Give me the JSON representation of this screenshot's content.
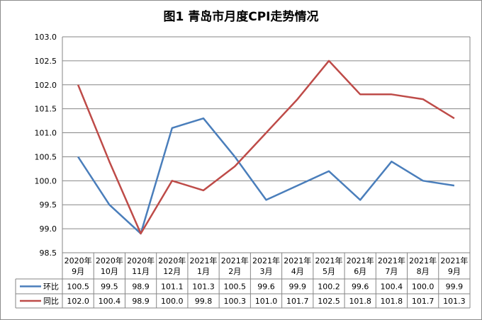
{
  "chart_data": {
    "type": "line",
    "title": "图1  青岛市月度CPI走势情况",
    "categories": [
      [
        "2020年",
        "9月"
      ],
      [
        "2020年",
        "10月"
      ],
      [
        "2020年",
        "11月"
      ],
      [
        "2020年",
        "12月"
      ],
      [
        "2021年",
        "1月"
      ],
      [
        "2021年",
        "2月"
      ],
      [
        "2021年",
        "3月"
      ],
      [
        "2021年",
        "4月"
      ],
      [
        "2021年",
        "5月"
      ],
      [
        "2021年",
        "6月"
      ],
      [
        "2021年",
        "7月"
      ],
      [
        "2021年",
        "8月"
      ],
      [
        "2021年",
        "9月"
      ]
    ],
    "series": [
      {
        "name": "环比",
        "color": "#4a7ebb",
        "values": [
          100.5,
          99.5,
          98.9,
          101.1,
          101.3,
          100.5,
          99.6,
          99.9,
          100.2,
          99.6,
          100.4,
          100.0,
          99.9
        ],
        "labels": [
          "100.5",
          "99.5",
          "98.9",
          "101.1",
          "101.3",
          "100.5",
          "99.6",
          "99.9",
          "100.2",
          "99.6",
          "100.4",
          "100.0",
          "99.9"
        ]
      },
      {
        "name": "同比",
        "color": "#be4b48",
        "values": [
          102.0,
          100.4,
          98.9,
          100.0,
          99.8,
          100.3,
          101.0,
          101.7,
          102.5,
          101.8,
          101.8,
          101.7,
          101.3
        ],
        "labels": [
          "102.0",
          "100.4",
          "98.9",
          "100.0",
          "99.8",
          "100.3",
          "101.0",
          "101.7",
          "102.5",
          "101.8",
          "101.8",
          "101.7",
          "101.3"
        ]
      }
    ],
    "ylim": [
      98.5,
      103.0
    ],
    "yticks": [
      "98.5",
      "99.0",
      "99.5",
      "100.0",
      "100.5",
      "101.0",
      "101.5",
      "102.0",
      "102.5",
      "103.0"
    ],
    "grid": true,
    "legend": "data-table"
  }
}
